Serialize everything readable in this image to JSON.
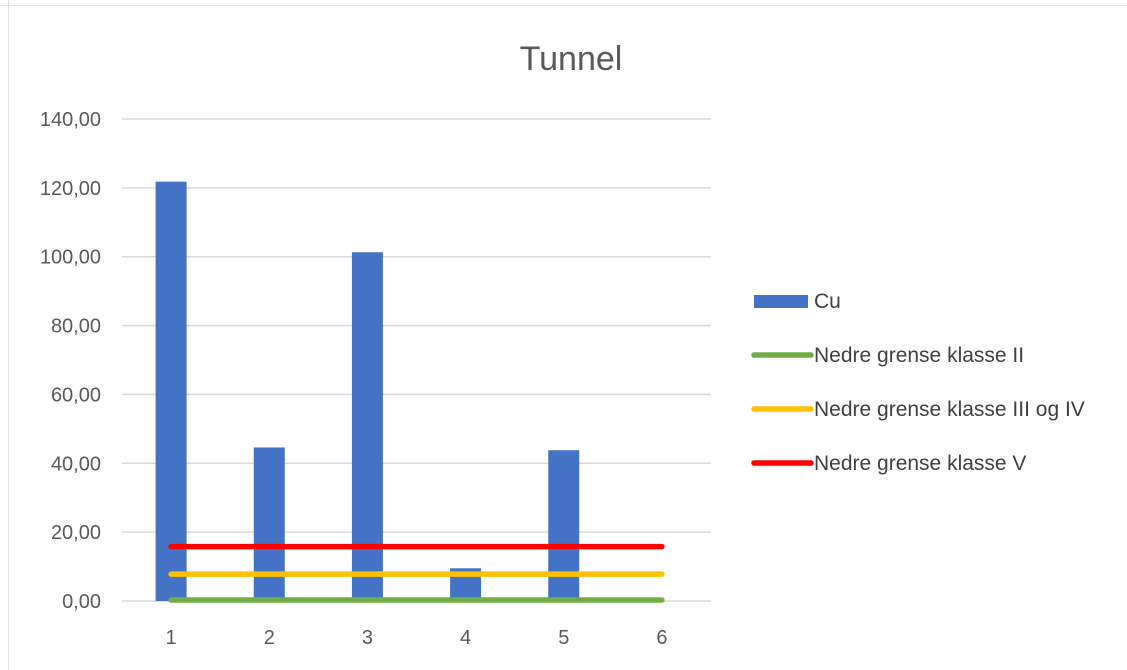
{
  "chart_data": {
    "type": "bar",
    "title": "Tunnel",
    "xlabel": "",
    "ylabel": "",
    "categories": [
      "1",
      "2",
      "3",
      "4",
      "5",
      "6"
    ],
    "ylim": [
      0,
      140
    ],
    "yticks": [
      "0,00",
      "20,00",
      "40,00",
      "60,00",
      "80,00",
      "100,00",
      "120,00",
      "140,00"
    ],
    "grid": true,
    "legend_position": "right",
    "series": [
      {
        "name": "Cu",
        "kind": "bar",
        "color": "#4472C4",
        "values": [
          121.8,
          44.6,
          101.3,
          9.5,
          43.8,
          null
        ]
      },
      {
        "name": "Nedre grense klasse II",
        "kind": "line",
        "color": "#70AD47",
        "values": [
          0.3,
          0.3,
          0.3,
          0.3,
          0.3,
          0.3
        ]
      },
      {
        "name": "Nedre grense klasse III og IV",
        "kind": "line",
        "color": "#FFC000",
        "values": [
          7.8,
          7.8,
          7.8,
          7.8,
          7.8,
          7.8
        ]
      },
      {
        "name": "Nedre grense klasse V",
        "kind": "line",
        "color": "#FF0000",
        "values": [
          15.8,
          15.8,
          15.8,
          15.8,
          15.8,
          15.8
        ]
      }
    ]
  }
}
